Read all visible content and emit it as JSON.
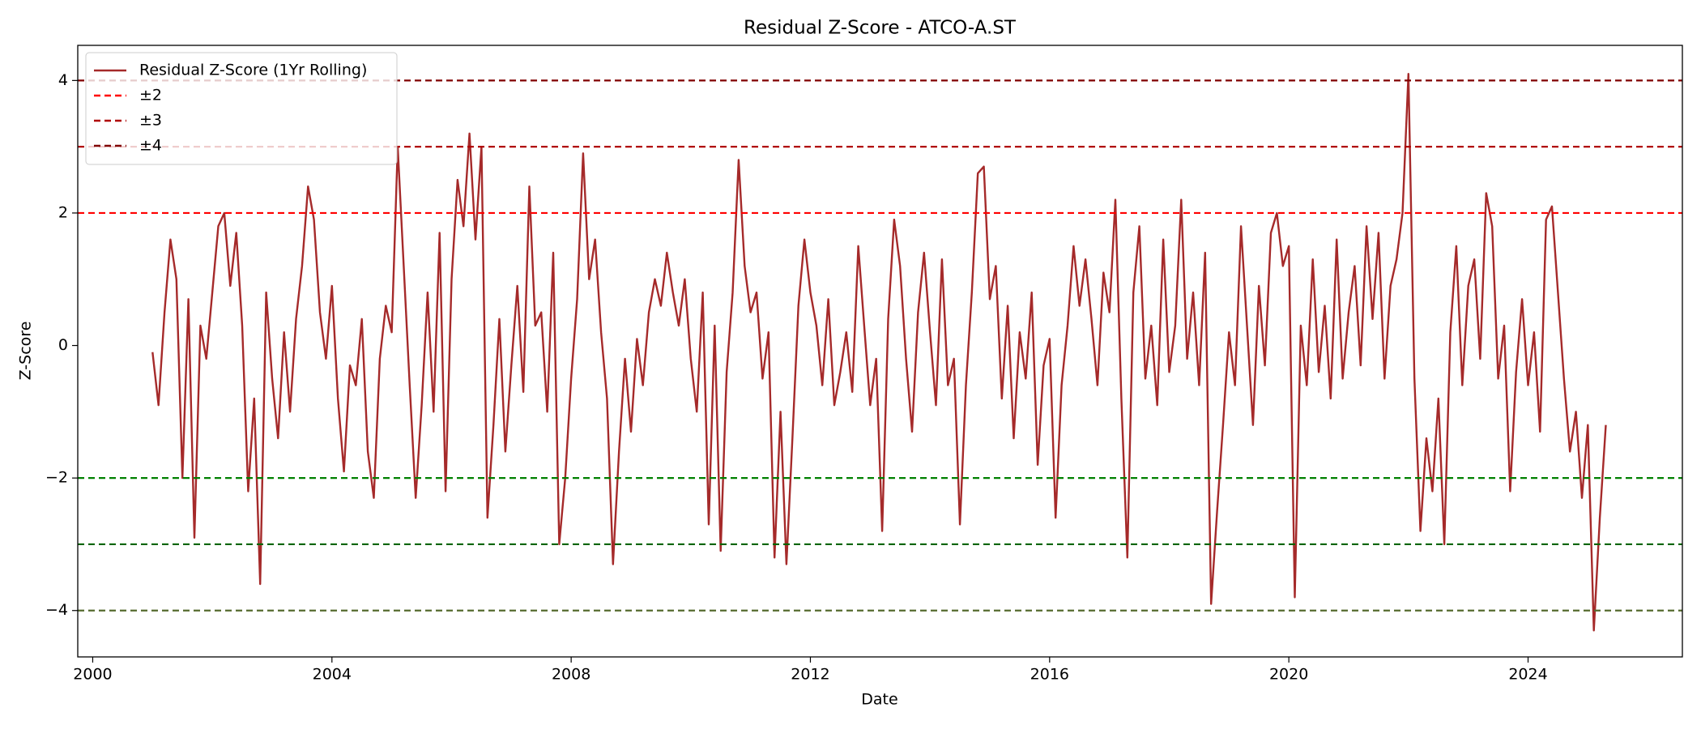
{
  "chart_data": {
    "type": "line",
    "title": "Residual Z-Score - ATCO-A.ST",
    "xlabel": "Date",
    "ylabel": "Z-Score",
    "x": [
      2001.0,
      2001.1,
      2001.2,
      2001.3,
      2001.4,
      2001.5,
      2001.6,
      2001.7,
      2001.8,
      2001.9,
      2002.0,
      2002.1,
      2002.2,
      2002.3,
      2002.4,
      2002.5,
      2002.6,
      2002.7,
      2002.8,
      2002.9,
      2003.0,
      2003.1,
      2003.2,
      2003.3,
      2003.4,
      2003.5,
      2003.6,
      2003.7,
      2003.8,
      2003.9,
      2004.0,
      2004.1,
      2004.2,
      2004.3,
      2004.4,
      2004.5,
      2004.6,
      2004.7,
      2004.8,
      2004.9,
      2005.0,
      2005.1,
      2005.2,
      2005.3,
      2005.4,
      2005.5,
      2005.6,
      2005.7,
      2005.8,
      2005.9,
      2006.0,
      2006.1,
      2006.2,
      2006.3,
      2006.4,
      2006.5,
      2006.6,
      2006.7,
      2006.8,
      2006.9,
      2007.0,
      2007.1,
      2007.2,
      2007.3,
      2007.4,
      2007.5,
      2007.6,
      2007.7,
      2007.8,
      2007.9,
      2008.0,
      2008.1,
      2008.2,
      2008.3,
      2008.4,
      2008.5,
      2008.6,
      2008.7,
      2008.8,
      2008.9,
      2009.0,
      2009.1,
      2009.2,
      2009.3,
      2009.4,
      2009.5,
      2009.6,
      2009.7,
      2009.8,
      2009.9,
      2010.0,
      2010.1,
      2010.2,
      2010.3,
      2010.4,
      2010.5,
      2010.6,
      2010.7,
      2010.8,
      2010.9,
      2011.0,
      2011.1,
      2011.2,
      2011.3,
      2011.4,
      2011.5,
      2011.6,
      2011.7,
      2011.8,
      2011.9,
      2012.0,
      2012.1,
      2012.2,
      2012.3,
      2012.4,
      2012.5,
      2012.6,
      2012.7,
      2012.8,
      2012.9,
      2013.0,
      2013.1,
      2013.2,
      2013.3,
      2013.4,
      2013.5,
      2013.6,
      2013.7,
      2013.8,
      2013.9,
      2014.0,
      2014.1,
      2014.2,
      2014.3,
      2014.4,
      2014.5,
      2014.6,
      2014.7,
      2014.8,
      2014.9,
      2015.0,
      2015.1,
      2015.2,
      2015.3,
      2015.4,
      2015.5,
      2015.6,
      2015.7,
      2015.8,
      2015.9,
      2016.0,
      2016.1,
      2016.2,
      2016.3,
      2016.4,
      2016.5,
      2016.6,
      2016.7,
      2016.8,
      2016.9,
      2017.0,
      2017.1,
      2017.2,
      2017.3,
      2017.4,
      2017.5,
      2017.6,
      2017.7,
      2017.8,
      2017.9,
      2018.0,
      2018.1,
      2018.2,
      2018.3,
      2018.4,
      2018.5,
      2018.6,
      2018.7,
      2018.8,
      2018.9,
      2019.0,
      2019.1,
      2019.2,
      2019.3,
      2019.4,
      2019.5,
      2019.6,
      2019.7,
      2019.8,
      2019.9,
      2020.0,
      2020.1,
      2020.2,
      2020.3,
      2020.4,
      2020.5,
      2020.6,
      2020.7,
      2020.8,
      2020.9,
      2021.0,
      2021.1,
      2021.2,
      2021.3,
      2021.4,
      2021.5,
      2021.6,
      2021.7,
      2021.8,
      2021.9,
      2022.0,
      2022.1,
      2022.2,
      2022.3,
      2022.4,
      2022.5,
      2022.6,
      2022.7,
      2022.8,
      2022.9,
      2023.0,
      2023.1,
      2023.2,
      2023.3,
      2023.4,
      2023.5,
      2023.6,
      2023.7,
      2023.8,
      2023.9,
      2024.0,
      2024.1,
      2024.2,
      2024.3,
      2024.4,
      2024.5,
      2024.6,
      2024.7,
      2024.8,
      2024.9,
      2025.0,
      2025.1,
      2025.2,
      2025.3
    ],
    "series": [
      {
        "name": "Residual Z-Score (1Yr Rolling)",
        "color": "#a52a2a",
        "values": [
          -0.1,
          -0.9,
          0.5,
          1.6,
          1.0,
          -2.0,
          0.7,
          -2.9,
          0.3,
          -0.2,
          0.8,
          1.8,
          2.0,
          0.9,
          1.7,
          0.3,
          -2.2,
          -0.8,
          -3.6,
          0.8,
          -0.5,
          -1.4,
          0.2,
          -1.0,
          0.4,
          1.2,
          2.4,
          1.9,
          0.5,
          -0.2,
          0.9,
          -0.8,
          -1.9,
          -0.3,
          -0.6,
          0.4,
          -1.6,
          -2.3,
          -0.2,
          0.6,
          0.2,
          3.0,
          1.2,
          -0.6,
          -2.3,
          -0.9,
          0.8,
          -1.0,
          1.7,
          -2.2,
          1.0,
          2.5,
          1.8,
          3.2,
          1.6,
          3.0,
          -2.6,
          -1.2,
          0.4,
          -1.6,
          -0.3,
          0.9,
          -0.7,
          2.4,
          0.3,
          0.5,
          -1.0,
          1.4,
          -3.0,
          -2.0,
          -0.5,
          0.7,
          2.9,
          1.0,
          1.6,
          0.2,
          -0.8,
          -3.3,
          -1.6,
          -0.2,
          -1.3,
          0.1,
          -0.6,
          0.5,
          1.0,
          0.6,
          1.4,
          0.8,
          0.3,
          1.0,
          -0.2,
          -1.0,
          0.8,
          -2.7,
          0.3,
          -3.1,
          -0.4,
          0.8,
          2.8,
          1.2,
          0.5,
          0.8,
          -0.5,
          0.2,
          -3.2,
          -1.0,
          -3.3,
          -1.4,
          0.6,
          1.6,
          0.8,
          0.3,
          -0.6,
          0.7,
          -0.9,
          -0.4,
          0.2,
          -0.7,
          1.5,
          0.3,
          -0.9,
          -0.2,
          -2.8,
          0.4,
          1.9,
          1.2,
          -0.2,
          -1.3,
          0.5,
          1.4,
          0.2,
          -0.9,
          1.3,
          -0.6,
          -0.2,
          -2.7,
          -0.6,
          0.8,
          2.6,
          2.7,
          0.7,
          1.2,
          -0.8,
          0.6,
          -1.4,
          0.2,
          -0.5,
          0.8,
          -1.8,
          -0.3,
          0.1,
          -2.6,
          -0.6,
          0.3,
          1.5,
          0.6,
          1.3,
          0.4,
          -0.6,
          1.1,
          0.5,
          2.2,
          -0.8,
          -3.2,
          0.8,
          1.8,
          -0.5,
          0.3,
          -0.9,
          1.6,
          -0.4,
          0.3,
          2.2,
          -0.2,
          0.8,
          -0.6,
          1.4,
          -3.9,
          -2.5,
          -1.2,
          0.2,
          -0.6,
          1.8,
          0.3,
          -1.2,
          0.9,
          -0.3,
          1.7,
          2.0,
          1.2,
          1.5,
          -3.8,
          0.3,
          -0.6,
          1.3,
          -0.4,
          0.6,
          -0.8,
          1.6,
          -0.5,
          0.5,
          1.2,
          -0.3,
          1.8,
          0.4,
          1.7,
          -0.5,
          0.9,
          1.3,
          2.0,
          4.1,
          -0.5,
          -2.8,
          -1.4,
          -2.2,
          -0.8,
          -3.0,
          0.2,
          1.5,
          -0.6,
          0.9,
          1.3,
          -0.2,
          2.3,
          1.8,
          -0.5,
          0.3,
          -2.2,
          -0.4,
          0.7,
          -0.6,
          0.2,
          -1.3,
          1.9,
          2.1,
          0.8,
          -0.5,
          -1.6,
          -1.0,
          -2.3,
          -1.2,
          -4.3,
          -2.6,
          -1.2
        ]
      }
    ],
    "thresholds": [
      {
        "name": "±2",
        "value": 2,
        "color": "#ff0000",
        "lower_value": -2,
        "lower_color": "#008000"
      },
      {
        "name": "±3",
        "value": 3,
        "color": "#b00000",
        "lower_value": -3,
        "lower_color": "#006400"
      },
      {
        "name": "±4",
        "value": 4,
        "color": "#800000",
        "lower_value": -4,
        "lower_color": "#556b2f"
      }
    ],
    "xlim": [
      1999.75,
      2026.58
    ],
    "ylim": [
      -4.7,
      4.53
    ],
    "xticks": [
      2000,
      2004,
      2008,
      2012,
      2016,
      2020,
      2024
    ],
    "yticks": [
      {
        "value": -4,
        "label": "−4"
      },
      {
        "value": -2,
        "label": "−2"
      },
      0,
      2,
      4
    ],
    "legend": "upper left"
  }
}
